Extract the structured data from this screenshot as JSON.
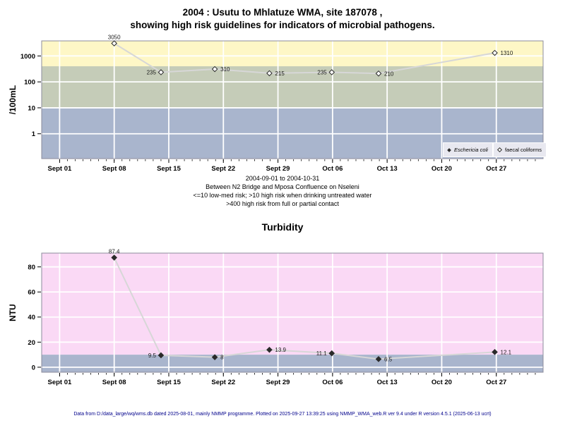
{
  "title": {
    "line1": "2004 : Usutu to Mhlatuze WMA, site 187078 ,",
    "line2": "showing high risk guidelines for indicators of microbial pathogens."
  },
  "footer": {
    "text": "Data from D:/data_large/wq/wms.db dated 2025-08-01, mainly NMMP programme. Plotted on 2025-09-27 13:39:25 using NMMP_WMA_web.R ver 9.4 under R version 4.5.1 (2025-06-13 ucrt)"
  },
  "colors": {
    "band_high_risk_contact": "#FEF7C6",
    "band_high_risk_drinking": "#C5CCB8",
    "band_low_med_risk": "#A9B5CD",
    "band_turbidity_high": "#FAD9F5",
    "band_turbidity_low": "#A9B5CD",
    "line": "#D7D7D7",
    "gridline": "#FFFFFF",
    "plot_border": "#8C8C9C",
    "footer_text": "#00008B",
    "legend_bg": "#E8E8F0"
  },
  "chart_data": [
    {
      "type": "line",
      "yscale": "log",
      "ylabel": "/100mL",
      "ylim": [
        0.11,
        3800
      ],
      "yticks": [
        1,
        10,
        100,
        1000
      ],
      "ytick_labels": [
        "1",
        "10",
        "100",
        "1000"
      ],
      "x_tick_labels": [
        "Sept 01",
        "Sept 08",
        "Sept 15",
        "Sept 22",
        "Sept 29",
        "Oct 06",
        "Oct 13",
        "Oct 20",
        "Oct 27"
      ],
      "x_tick_days": [
        0,
        7,
        14,
        21,
        28,
        35,
        42,
        49,
        56
      ],
      "xlim_days": [
        -2.3,
        62
      ],
      "grid": true,
      "bands": [
        {
          "name": "high-risk-full-or-partial-contact",
          "from": 400,
          "to": 3800,
          "color": "#FEF7C6"
        },
        {
          "name": "high-risk-drinking-untreated",
          "from": 10,
          "to": 400,
          "color": "#C5CCB8"
        },
        {
          "name": "low-med-risk",
          "from": 0.11,
          "to": 10,
          "color": "#A9B5CD"
        }
      ],
      "series": [
        {
          "name": "faecal coliforms",
          "marker": "open-diamond",
          "x_days": [
            7,
            13,
            19.9,
            26.9,
            34.9,
            40.9,
            55.8
          ],
          "values": [
            3050,
            235,
            310,
            215,
            235,
            210,
            1310
          ],
          "point_labels": [
            "3050",
            "235",
            "310",
            "215",
            "235",
            "210",
            "1310"
          ],
          "label_sides": [
            "above",
            "left",
            "right",
            "right",
            "left",
            "right",
            "right"
          ]
        }
      ],
      "legend": {
        "position": "bottom-right-inside",
        "items": [
          {
            "label": "Eschericia coli",
            "marker": "filled-diamond"
          },
          {
            "label": "faecal coliforms",
            "marker": "open-diamond"
          }
        ]
      },
      "annotations": [
        "2004-09-01 to 2004-10-31",
        "Between N2 Bridge and Mposa Confluence on Nseleni",
        "<=10 low-med risk; >10 high risk when drinking untreated water",
        ">400 high risk from full or partial contact"
      ]
    },
    {
      "type": "line",
      "title": "Turbidity",
      "yscale": "linear",
      "ylabel": "NTU",
      "ylim": [
        -4,
        91
      ],
      "yticks": [
        0,
        20,
        40,
        60,
        80
      ],
      "ytick_labels": [
        "0",
        "20",
        "40",
        "60",
        "80"
      ],
      "x_tick_labels": [
        "Sept 01",
        "Sept 08",
        "Sept 15",
        "Sept 22",
        "Sept 29",
        "Oct 06",
        "Oct 13",
        "Oct 20",
        "Oct 27"
      ],
      "x_tick_days": [
        0,
        7,
        14,
        21,
        28,
        35,
        42,
        49,
        56
      ],
      "xlim_days": [
        -2.3,
        62
      ],
      "grid": true,
      "bands": [
        {
          "name": "above-guideline",
          "from": 10,
          "to": 91,
          "color": "#FAD9F5"
        },
        {
          "name": "below-guideline",
          "from": -4,
          "to": 10,
          "color": "#A9B5CD"
        }
      ],
      "series": [
        {
          "name": "Turbidity",
          "marker": "filled-diamond",
          "x_days": [
            7,
            13,
            19.9,
            26.9,
            34.9,
            40.9,
            55.8
          ],
          "values": [
            87.4,
            9.5,
            8,
            13.9,
            11.1,
            6.5,
            12.1
          ],
          "point_labels": [
            "87.4",
            "9.5",
            "8",
            "13.9",
            "11.1",
            "6.5",
            "12.1"
          ],
          "label_sides": [
            "above",
            "left",
            "right",
            "right",
            "left",
            "right",
            "right"
          ]
        }
      ]
    }
  ]
}
